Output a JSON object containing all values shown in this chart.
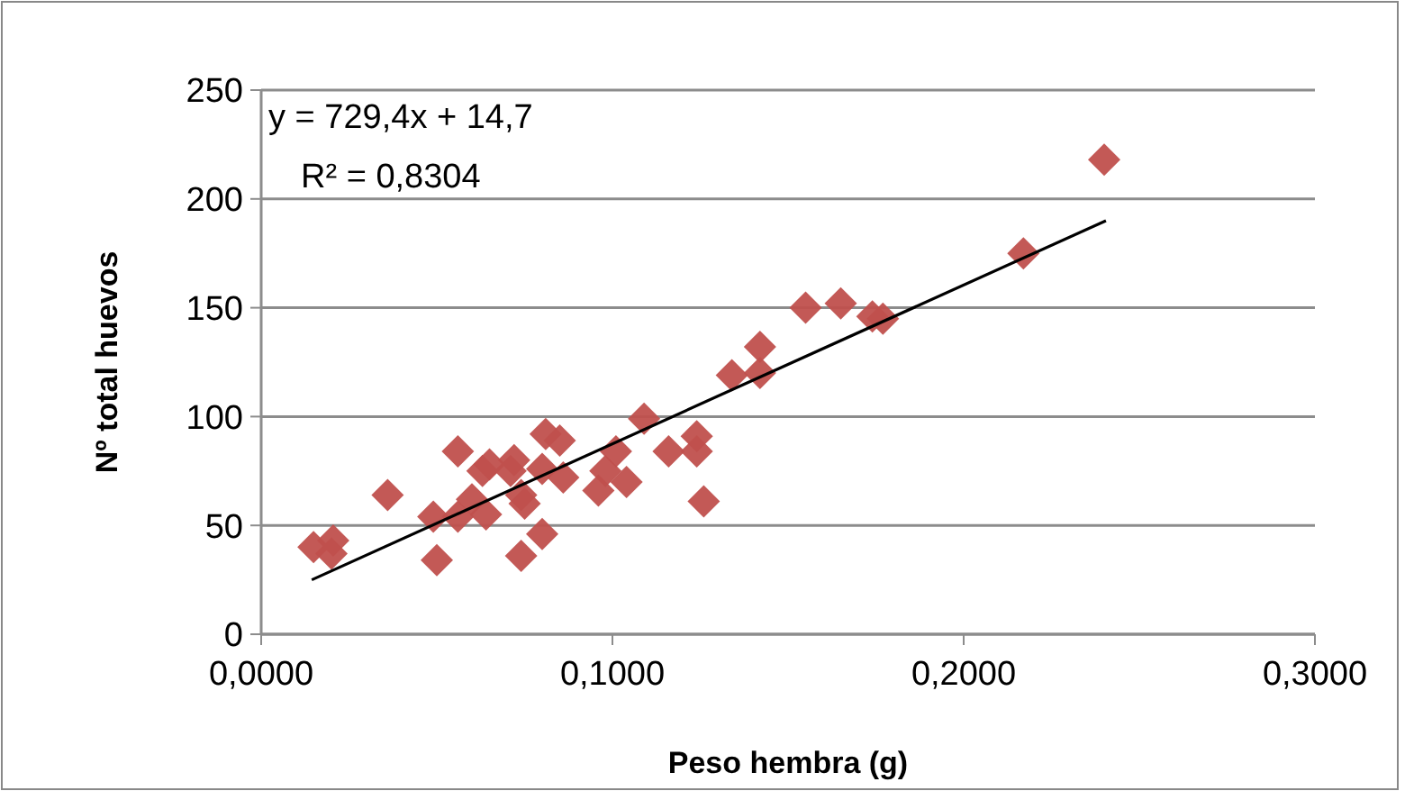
{
  "chart_data": {
    "type": "scatter",
    "xlabel": "Peso hembra (g)",
    "ylabel": "Nº total huevos",
    "xlim": [
      0,
      0.3
    ],
    "ylim": [
      0,
      250
    ],
    "xticks": [
      {
        "value": 0,
        "label": "0,0000"
      },
      {
        "value": 0.1,
        "label": "0,1000"
      },
      {
        "value": 0.2,
        "label": "0,2000"
      },
      {
        "value": 0.3,
        "label": "0,3000"
      }
    ],
    "yticks": [
      0,
      50,
      100,
      150,
      200,
      250
    ],
    "grid": "y",
    "marker": "diamond",
    "annotations": [
      "y = 729,4x + 14,7",
      "R² = 0,8304"
    ],
    "series": [
      {
        "type": "scatter",
        "color": "#c0504d",
        "x": [
          0.0149,
          0.0205,
          0.02,
          0.036,
          0.049,
          0.05,
          0.056,
          0.056,
          0.06,
          0.063,
          0.064,
          0.065,
          0.071,
          0.072,
          0.074,
          0.075,
          0.074,
          0.08,
          0.081,
          0.08,
          0.085,
          0.086,
          0.096,
          0.098,
          0.101,
          0.104,
          0.109,
          0.116,
          0.124,
          0.124,
          0.126,
          0.134,
          0.142,
          0.142,
          0.155,
          0.165,
          0.174,
          0.177,
          0.217,
          0.24
        ],
        "values": [
          40,
          43,
          37,
          64,
          54,
          34,
          84,
          54,
          62,
          75,
          55,
          78,
          75,
          80,
          64,
          60,
          36,
          76,
          92,
          46,
          89,
          72,
          66,
          75,
          84,
          70,
          99,
          84,
          91,
          84,
          61,
          119,
          120,
          132,
          150,
          152,
          146,
          145,
          175,
          218
        ]
      },
      {
        "type": "line",
        "color": "#000000",
        "marker": "none",
        "x": [
          0.0144,
          0.2405
        ],
        "values": [
          25,
          190
        ]
      }
    ]
  }
}
